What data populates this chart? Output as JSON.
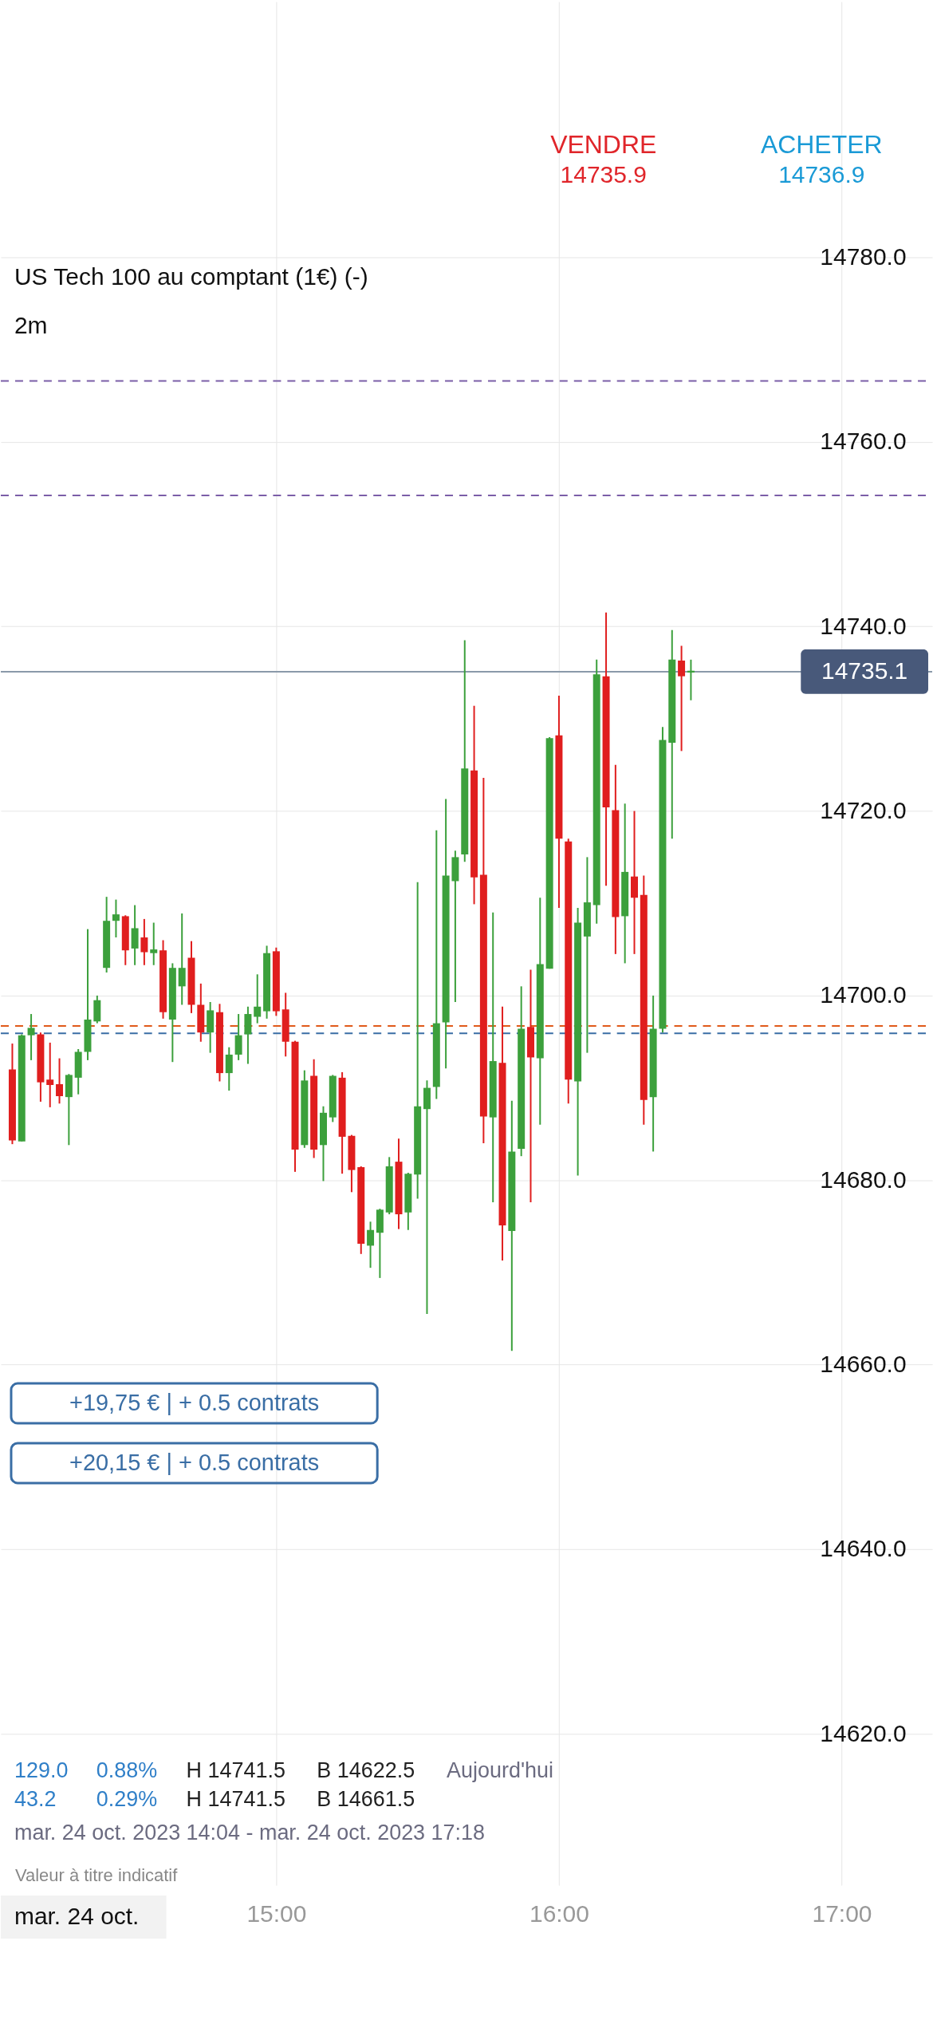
{
  "chart_data": {
    "type": "candlestick",
    "title": "US Tech 100 au comptant (1€) (-)",
    "subtitle": "2m",
    "x": [
      14.0667,
      14.1,
      14.1333,
      14.1667,
      14.2,
      14.2333,
      14.2667,
      14.3,
      14.3333,
      14.3667,
      14.4,
      14.4333,
      14.4667,
      14.5,
      14.5333,
      14.5667,
      14.6,
      14.6333,
      14.6667,
      14.7,
      14.7333,
      14.7667,
      14.8,
      14.8333,
      14.8667,
      14.9,
      14.9333,
      14.9667,
      15,
      15.0333,
      15.0667,
      15.1,
      15.1333,
      15.1667,
      15.2,
      15.2333,
      15.2667,
      15.3,
      15.3333,
      15.3667,
      15.4,
      15.4333,
      15.4667,
      15.5,
      15.5333,
      15.5667,
      15.6,
      15.6333,
      15.6667,
      15.7,
      15.7333,
      15.7667,
      15.8,
      15.8333,
      15.8667,
      15.9,
      15.9333,
      15.9667,
      16,
      16.0333,
      16.0667,
      16.1,
      16.1333,
      16.1667,
      16.2,
      16.2333,
      16.2667,
      16.3,
      16.3333,
      16.3667,
      16.4,
      16.4333,
      16.4667
    ],
    "ohlc": [
      [
        14692,
        14694.8,
        14683.9,
        14684.3
      ],
      [
        14684.2,
        14695.8,
        14684.2,
        14695.7
      ],
      [
        14695.7,
        14698,
        14693,
        14696.5
      ],
      [
        14695.8,
        14696,
        14688.5,
        14690.6
      ],
      [
        14690.9,
        14694.9,
        14687.9,
        14690.3
      ],
      [
        14690.4,
        14693.2,
        14688.3,
        14689.1
      ],
      [
        14689,
        14691.5,
        14683.8,
        14691.4
      ],
      [
        14691.1,
        14694.2,
        14689.3,
        14693.9
      ],
      [
        14693.9,
        14707.2,
        14693,
        14697.4
      ],
      [
        14697.2,
        14700,
        14697,
        14699.5
      ],
      [
        14703,
        14710.7,
        14702.5,
        14708.1
      ],
      [
        14708.1,
        14710.4,
        14706.3,
        14708.8
      ],
      [
        14708.6,
        14708.7,
        14703.3,
        14704.9
      ],
      [
        14705.1,
        14709.8,
        14703.3,
        14707.3
      ],
      [
        14706.3,
        14708.3,
        14703.3,
        14704.7
      ],
      [
        14704.6,
        14707.9,
        14703.3,
        14705
      ],
      [
        14704.9,
        14706,
        14697.5,
        14698.2
      ],
      [
        14697.4,
        14703.5,
        14692.8,
        14703
      ],
      [
        14701,
        14708.9,
        14699,
        14703
      ],
      [
        14704.1,
        14705.9,
        14698.1,
        14699
      ],
      [
        14699,
        14701.3,
        14695,
        14696
      ],
      [
        14696,
        14699.3,
        14693.8,
        14698.4
      ],
      [
        14698.2,
        14699.1,
        14690.7,
        14691.6
      ],
      [
        14691.6,
        14694.4,
        14689.7,
        14693.6
      ],
      [
        14693.6,
        14698,
        14693,
        14695.7
      ],
      [
        14695.8,
        14698.8,
        14692.6,
        14698
      ],
      [
        14697.7,
        14702.3,
        14697,
        14698.8
      ],
      [
        14698.3,
        14705.4,
        14697.5,
        14704.6
      ],
      [
        14704.8,
        14705.2,
        14697.8,
        14698.3
      ],
      [
        14698.5,
        14700.3,
        14693.4,
        14695
      ],
      [
        14695,
        14695.1,
        14680.9,
        14683.3
      ],
      [
        14683.8,
        14691.9,
        14683.5,
        14690.8
      ],
      [
        14691.3,
        14693.1,
        14682.4,
        14683.3
      ],
      [
        14683.8,
        14688,
        14679.9,
        14687.3
      ],
      [
        14686.8,
        14691.4,
        14686.3,
        14691.3
      ],
      [
        14691.1,
        14691.7,
        14680.7,
        14684.7
      ],
      [
        14684.8,
        14684.9,
        14678.7,
        14681.1
      ],
      [
        14681.4,
        14681.5,
        14672,
        14673.1
      ],
      [
        14672.9,
        14675.5,
        14670.5,
        14674.6
      ],
      [
        14674.3,
        14676.9,
        14669.4,
        14676.8
      ],
      [
        14676.5,
        14682.5,
        14676.3,
        14681.5
      ],
      [
        14682,
        14684.5,
        14674.7,
        14676.3
      ],
      [
        14676.5,
        14680.8,
        14674.6,
        14680.7
      ],
      [
        14680.6,
        14712.3,
        14678,
        14688
      ],
      [
        14687.7,
        14690.8,
        14665.5,
        14690
      ],
      [
        14690.1,
        14717.9,
        14688.8,
        14697
      ],
      [
        14697.1,
        14721.3,
        14692.1,
        14713
      ],
      [
        14712.4,
        14715.7,
        14699.3,
        14715
      ],
      [
        14715.3,
        14738.5,
        14714.5,
        14724.6
      ],
      [
        14724.4,
        14731.4,
        14709.9,
        14712.8
      ],
      [
        14713.1,
        14723.6,
        14684,
        14686.9
      ],
      [
        14686.8,
        14709,
        14677.6,
        14692.9
      ],
      [
        14692.7,
        14698.8,
        14671.3,
        14675.1
      ],
      [
        14674.5,
        14688.6,
        14661.5,
        14683.1
      ],
      [
        14683.4,
        14701,
        14682.6,
        14696.4
      ],
      [
        14696.6,
        14702.8,
        14677.6,
        14693.3
      ],
      [
        14693.2,
        14710.6,
        14686,
        14703.4
      ],
      [
        14702.9,
        14728,
        14702.9,
        14727.9
      ],
      [
        14728.2,
        14732.5,
        14709.5,
        14717
      ],
      [
        14716.7,
        14717,
        14688.3,
        14690.9
      ],
      [
        14690.7,
        14709.5,
        14680.5,
        14707.9
      ],
      [
        14706.4,
        14715,
        14693.8,
        14710.1
      ],
      [
        14709.8,
        14736.4,
        14707.8,
        14734.8
      ],
      [
        14734.6,
        14741.5,
        14711.9,
        14720.4
      ],
      [
        14720.1,
        14725,
        14704.5,
        14708.5
      ],
      [
        14708.6,
        14720.8,
        14703.5,
        14713.4
      ],
      [
        14712.9,
        14720,
        14704.5,
        14710.6
      ],
      [
        14710.9,
        14713,
        14686,
        14688.7
      ],
      [
        14689,
        14700,
        14683.1,
        14696.4
      ],
      [
        14696.4,
        14729.1,
        14696,
        14727.7
      ],
      [
        14727.4,
        14739.6,
        14717,
        14736.4
      ],
      [
        14736.3,
        14737.9,
        14726.5,
        14734.6
      ],
      [
        14735,
        14736.4,
        14732,
        14735.2
      ]
    ],
    "colors": [
      "#e01e1e",
      "#3ca03c",
      "#3ca03c",
      "#e01e1e",
      "#e01e1e",
      "#e01e1e",
      "#3ca03c",
      "#3ca03c",
      "#3ca03c",
      "#3ca03c",
      "#3ca03c",
      "#3ca03c",
      "#e01e1e",
      "#3ca03c",
      "#e01e1e",
      "#3ca03c",
      "#e01e1e",
      "#3ca03c",
      "#3ca03c",
      "#e01e1e",
      "#e01e1e",
      "#3ca03c",
      "#e01e1e",
      "#3ca03c",
      "#3ca03c",
      "#3ca03c",
      "#3ca03c",
      "#3ca03c",
      "#e01e1e",
      "#e01e1e",
      "#e01e1e",
      "#3ca03c",
      "#e01e1e",
      "#3ca03c",
      "#3ca03c",
      "#e01e1e",
      "#e01e1e",
      "#e01e1e",
      "#3ca03c",
      "#3ca03c",
      "#3ca03c",
      "#e01e1e",
      "#3ca03c",
      "#3ca03c",
      "#3ca03c",
      "#3ca03c",
      "#3ca03c",
      "#3ca03c",
      "#3ca03c",
      "#e01e1e",
      "#e01e1e",
      "#3ca03c",
      "#e01e1e",
      "#3ca03c",
      "#3ca03c",
      "#e01e1e",
      "#3ca03c",
      "#3ca03c",
      "#e01e1e",
      "#e01e1e",
      "#3ca03c",
      "#3ca03c",
      "#3ca03c",
      "#e01e1e",
      "#e01e1e",
      "#3ca03c",
      "#e01e1e",
      "#e01e1e",
      "#3ca03c",
      "#3ca03c",
      "#3ca03c",
      "#e01e1e",
      "#3ca03c"
    ],
    "xlim": [
      14.04,
      17.306
    ],
    "xticks": [
      {
        "value": 15,
        "label": "15:00"
      },
      {
        "value": 16,
        "label": "16:00"
      },
      {
        "value": 17,
        "label": "17:00"
      }
    ],
    "ylim": [
      14603.6,
      14807.7
    ],
    "yticks": [
      {
        "value": 14620,
        "label": "14620.0"
      },
      {
        "value": 14640,
        "label": "14640.0"
      },
      {
        "value": 14660,
        "label": "14660.0"
      },
      {
        "value": 14680,
        "label": "14680.0"
      },
      {
        "value": 14700,
        "label": "14700.0"
      },
      {
        "value": 14720,
        "label": "14720.0"
      },
      {
        "value": 14740,
        "label": "14740.0"
      },
      {
        "value": 14760,
        "label": "14760.0"
      },
      {
        "value": 14780,
        "label": "14780.0"
      }
    ],
    "grid": true,
    "ref_lines": [
      {
        "axis": "y",
        "value": 14766.6,
        "color": "#7b5ea7",
        "line_style": "dashed"
      },
      {
        "axis": "y",
        "value": 14754.2,
        "color": "#7b5ea7",
        "line_style": "dashed"
      },
      {
        "axis": "y",
        "value": 14735.1,
        "label": "14735.1",
        "color": "#8a9aaa",
        "line_style": "solid"
      },
      {
        "axis": "y",
        "value": 14696.7,
        "color": "#e05a1a",
        "line_style": "dashed"
      },
      {
        "axis": "y",
        "value": 14695.9,
        "color": "#3a6ea5",
        "line_style": "dashed"
      }
    ],
    "annotations": [
      "VENDRE",
      "14735.9",
      "ACHETER",
      "14736.9",
      "129.0",
      "0.88%",
      "H 14741.5",
      "B 14622.5",
      "Aujourd'hui",
      "43.2",
      "0.29%",
      "H 14741.5",
      "B 14661.5",
      "mar. 24 oct. 2023 14:04 - mar. 24 oct. 2023 17:18",
      "Valeur à titre indicatif",
      "mar. 24 oct.",
      "+19,75 € | + 0.5 contrats",
      "+20,15 € | + 0.5 contrats"
    ]
  }
}
